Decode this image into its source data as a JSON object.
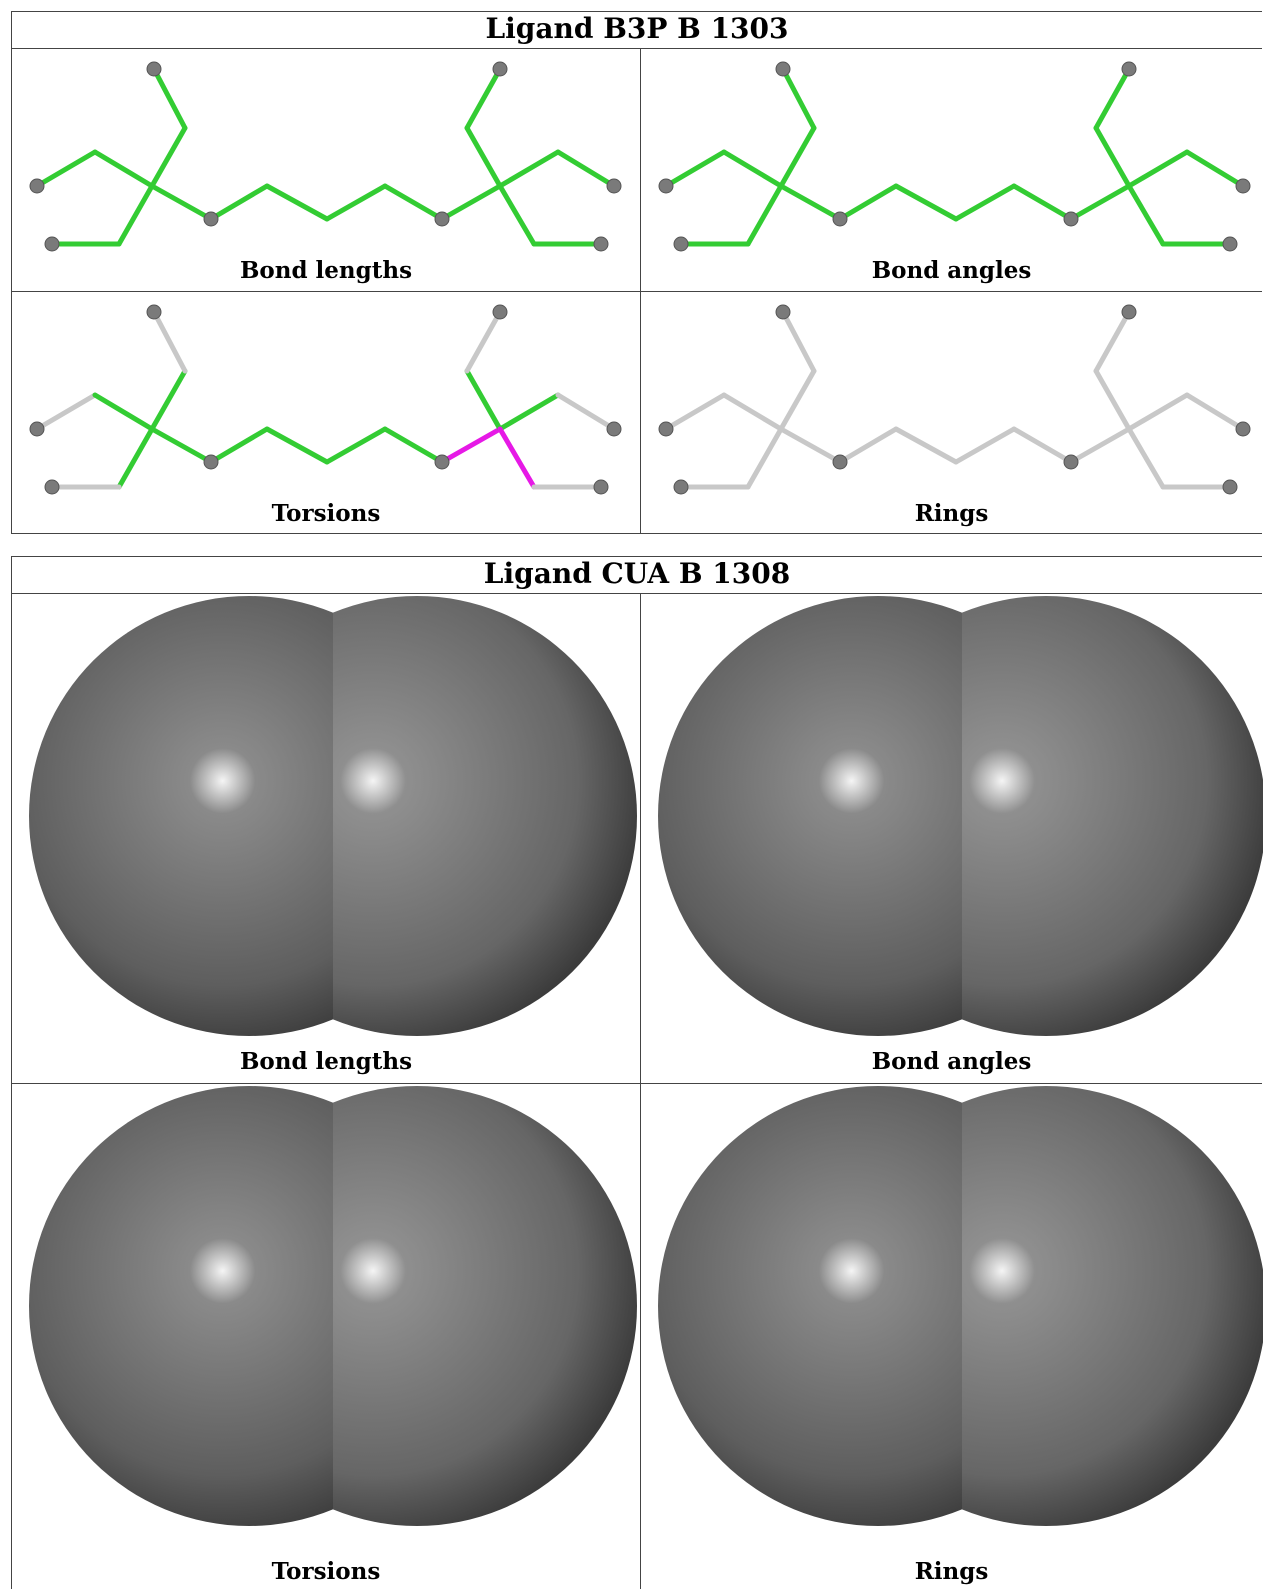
{
  "ligand1": {
    "title": "Ligand B3P B 1303",
    "panels": [
      {
        "caption": "Bond lengths",
        "bond_colors": "green"
      },
      {
        "caption": "Bond angles",
        "bond_colors": "green"
      },
      {
        "caption": "Torsions",
        "bond_colors": "mixed"
      },
      {
        "caption": "Rings",
        "bond_colors": "grey"
      }
    ]
  },
  "ligand2": {
    "title": "Ligand CUA B 1308",
    "panels": [
      {
        "caption": "Bond lengths"
      },
      {
        "caption": "Bond angles"
      },
      {
        "caption": "Torsions"
      },
      {
        "caption": "Rings"
      }
    ]
  },
  "colors": {
    "green": "#33cc33",
    "grey": "#c8c8c8",
    "magenta": "#e619e6",
    "atom": "#7a7a7a"
  }
}
